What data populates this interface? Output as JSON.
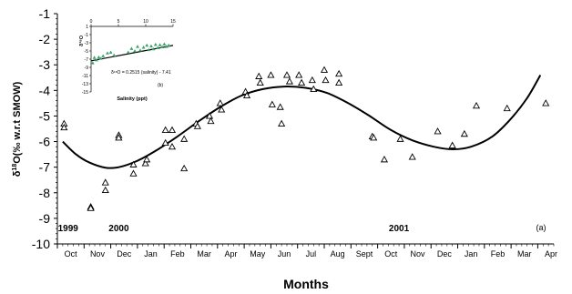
{
  "chart_data": [
    {
      "type": "scatter",
      "panel_label": "(a)",
      "ylabel_prefix": "δ",
      "ylabel_sup": "18",
      "ylabel_suffix": "O(‰ w.r.t SMOW)",
      "xlabel": "Months",
      "ylim": [
        -10,
        -1
      ],
      "yticks": [
        "-1",
        "-2",
        "-3",
        "-4",
        "-5",
        "-6",
        "-7",
        "-8",
        "-9",
        "-10"
      ],
      "xlim": [
        0,
        18.6
      ],
      "xtick_labels": [
        "Oct",
        "Nov",
        "Dec",
        "Jan",
        "Feb",
        "Mar",
        "Apr",
        "May",
        "Jun",
        "Jul",
        "Aug",
        "Sept",
        "Oct",
        "Nov",
        "Dec",
        "Jan",
        "Feb",
        "Mar",
        "Apr"
      ],
      "year_labels": [
        {
          "text": "1999",
          "x": 0.4
        },
        {
          "text": "2000",
          "x": 2.3
        },
        {
          "text": "2001",
          "x": 12.8
        }
      ],
      "grid": false,
      "marker": "open-triangle",
      "points": [
        {
          "x": 0.25,
          "y": -5.3
        },
        {
          "x": 0.25,
          "y": -5.45
        },
        {
          "x": 1.25,
          "y": -8.55
        },
        {
          "x": 1.25,
          "y": -8.6
        },
        {
          "x": 1.8,
          "y": -7.6
        },
        {
          "x": 1.8,
          "y": -7.9
        },
        {
          "x": 2.3,
          "y": -5.75
        },
        {
          "x": 2.3,
          "y": -5.85
        },
        {
          "x": 2.85,
          "y": -7.25
        },
        {
          "x": 2.85,
          "y": -6.9
        },
        {
          "x": 3.3,
          "y": -6.85
        },
        {
          "x": 3.35,
          "y": -6.7
        },
        {
          "x": 4.05,
          "y": -5.55
        },
        {
          "x": 4.05,
          "y": -6.05
        },
        {
          "x": 4.3,
          "y": -5.55
        },
        {
          "x": 4.3,
          "y": -6.2
        },
        {
          "x": 4.75,
          "y": -7.05
        },
        {
          "x": 4.75,
          "y": -5.9
        },
        {
          "x": 5.2,
          "y": -5.3
        },
        {
          "x": 5.25,
          "y": -5.4
        },
        {
          "x": 5.7,
          "y": -5.0
        },
        {
          "x": 5.75,
          "y": -5.2
        },
        {
          "x": 6.1,
          "y": -4.5
        },
        {
          "x": 6.15,
          "y": -4.75
        },
        {
          "x": 7.05,
          "y": -4.05
        },
        {
          "x": 7.1,
          "y": -4.2
        },
        {
          "x": 7.55,
          "y": -3.45
        },
        {
          "x": 7.6,
          "y": -3.7
        },
        {
          "x": 8.0,
          "y": -3.4
        },
        {
          "x": 8.05,
          "y": -4.55
        },
        {
          "x": 8.35,
          "y": -4.65
        },
        {
          "x": 8.4,
          "y": -5.3
        },
        {
          "x": 8.6,
          "y": -3.4
        },
        {
          "x": 8.7,
          "y": -3.65
        },
        {
          "x": 9.05,
          "y": -3.4
        },
        {
          "x": 9.15,
          "y": -3.7
        },
        {
          "x": 9.55,
          "y": -3.6
        },
        {
          "x": 9.6,
          "y": -3.95
        },
        {
          "x": 10.0,
          "y": -3.2
        },
        {
          "x": 10.05,
          "y": -3.6
        },
        {
          "x": 10.55,
          "y": -3.35
        },
        {
          "x": 10.55,
          "y": -3.7
        },
        {
          "x": 11.8,
          "y": -5.8
        },
        {
          "x": 11.85,
          "y": -5.85
        },
        {
          "x": 12.25,
          "y": -6.7
        },
        {
          "x": 12.85,
          "y": -5.9
        },
        {
          "x": 13.3,
          "y": -6.6
        },
        {
          "x": 14.25,
          "y": -5.6
        },
        {
          "x": 14.8,
          "y": -6.15
        },
        {
          "x": 15.25,
          "y": -5.7
        },
        {
          "x": 15.7,
          "y": -4.6
        },
        {
          "x": 16.85,
          "y": -4.7
        },
        {
          "x": 18.3,
          "y": -4.5
        }
      ],
      "fit_curve": [
        {
          "x": 0.2,
          "y": -6.0
        },
        {
          "x": 0.7,
          "y": -6.5
        },
        {
          "x": 1.2,
          "y": -6.82
        },
        {
          "x": 1.8,
          "y": -7.02
        },
        {
          "x": 2.3,
          "y": -7.0
        },
        {
          "x": 3.0,
          "y": -6.75
        },
        {
          "x": 3.7,
          "y": -6.35
        },
        {
          "x": 4.5,
          "y": -5.8
        },
        {
          "x": 5.3,
          "y": -5.2
        },
        {
          "x": 6.1,
          "y": -4.65
        },
        {
          "x": 6.9,
          "y": -4.2
        },
        {
          "x": 7.7,
          "y": -3.95
        },
        {
          "x": 8.5,
          "y": -3.85
        },
        {
          "x": 9.3,
          "y": -3.9
        },
        {
          "x": 10.1,
          "y": -4.1
        },
        {
          "x": 10.9,
          "y": -4.5
        },
        {
          "x": 11.7,
          "y": -5.0
        },
        {
          "x": 12.5,
          "y": -5.55
        },
        {
          "x": 13.3,
          "y": -5.95
        },
        {
          "x": 14.1,
          "y": -6.2
        },
        {
          "x": 14.8,
          "y": -6.3
        },
        {
          "x": 15.5,
          "y": -6.2
        },
        {
          "x": 16.3,
          "y": -5.8
        },
        {
          "x": 17.0,
          "y": -5.1
        },
        {
          "x": 17.6,
          "y": -4.3
        },
        {
          "x": 18.1,
          "y": -3.4
        }
      ]
    },
    {
      "type": "scatter",
      "panel_label": "(b)",
      "xlabel": "Salinity (ppt)",
      "ylabel": "δ¹⁸O",
      "xlim": [
        0,
        15
      ],
      "xticks": [
        0,
        5,
        10,
        15
      ],
      "ylim": [
        -15,
        1
      ],
      "yticks": [
        1,
        -1,
        -3,
        -5,
        -7,
        -9,
        -11,
        -13,
        -15
      ],
      "equation": "δ¹⁸O = 0.2515 (salinity) - 7.41",
      "marker": "filled-triangle",
      "marker_color": "#3aa06a",
      "fit_line": {
        "slope": 0.2515,
        "intercept": -7.41
      },
      "points": [
        {
          "x": 0.3,
          "y": -7.9
        },
        {
          "x": 0.6,
          "y": -6.6
        },
        {
          "x": 1.0,
          "y": -7.2
        },
        {
          "x": 1.4,
          "y": -6.5
        },
        {
          "x": 1.8,
          "y": -6.8
        },
        {
          "x": 2.2,
          "y": -6.2
        },
        {
          "x": 3.0,
          "y": -5.5
        },
        {
          "x": 3.6,
          "y": -5.3
        },
        {
          "x": 4.2,
          "y": -6.0
        },
        {
          "x": 6.8,
          "y": -5.3
        },
        {
          "x": 7.4,
          "y": -4.4
        },
        {
          "x": 8.0,
          "y": -5.0
        },
        {
          "x": 8.5,
          "y": -3.9
        },
        {
          "x": 9.0,
          "y": -4.8
        },
        {
          "x": 9.6,
          "y": -4.1
        },
        {
          "x": 10.2,
          "y": -3.6
        },
        {
          "x": 10.6,
          "y": -4.7
        },
        {
          "x": 11.0,
          "y": -3.8
        },
        {
          "x": 11.4,
          "y": -4.5
        },
        {
          "x": 11.8,
          "y": -3.4
        },
        {
          "x": 12.2,
          "y": -4.2
        },
        {
          "x": 12.6,
          "y": -3.5
        },
        {
          "x": 13.0,
          "y": -4.0
        },
        {
          "x": 13.4,
          "y": -3.3
        },
        {
          "x": 13.8,
          "y": -3.9
        },
        {
          "x": 14.2,
          "y": -3.6
        }
      ]
    }
  ]
}
